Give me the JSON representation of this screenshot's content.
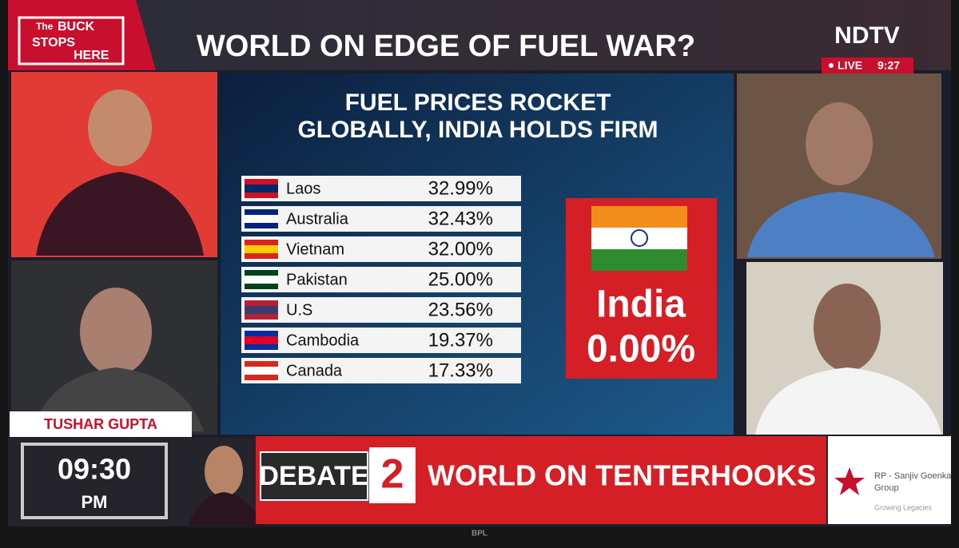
{
  "header": {
    "logo": [
      "The",
      "BUCK",
      "STOPS",
      "HERE"
    ],
    "title": "WORLD ON EDGE OF FUEL WAR?",
    "channel": "NDTV",
    "live": "LIVE",
    "time": "9:27"
  },
  "graphic": {
    "title": [
      "FUEL PRICES ROCKET",
      "GLOBALLY, INDIA HOLDS FIRM"
    ],
    "rows": [
      [
        "Laos",
        "32.99%"
      ],
      [
        "Australia",
        "32.43%"
      ],
      [
        "Vietnam",
        "32.00%"
      ],
      [
        "Pakistan",
        "25.00%"
      ],
      [
        "U.S",
        "23.56%"
      ],
      [
        "Cambodia",
        "19.37%"
      ],
      [
        "Canada",
        "17.33%"
      ]
    ],
    "highlight": {
      "country": "India",
      "value": "0.00%"
    }
  },
  "guest_name": "TUSHAR GUPTA",
  "footer": {
    "clock": "09:30",
    "period": "PM",
    "show": "DEBATE",
    "number": "2",
    "topic": "WORLD ON TENTERHOOKS",
    "sponsor": [
      "RP - Sanjiv Goenka",
      "Group"
    ],
    "tagline": "Growing Legacies"
  },
  "bezel_brand": "BPL"
}
